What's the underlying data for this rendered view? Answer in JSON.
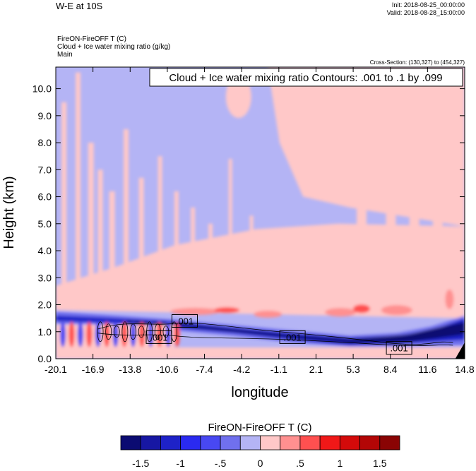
{
  "header": {
    "title": "W-E at 10S",
    "init": "Init: 2018-08-25_00:00:00",
    "valid": "Valid: 2018-08-28_15:00:00"
  },
  "meta": {
    "field": "FireON-FireOFF T   (C)",
    "contour": "Cloud + Ice water mixing ratio   (g/kg)",
    "domain": "Main"
  },
  "cross_section": "Cross-Section: (130,327) to (454,327)",
  "colors": [
    "#0b0b72",
    "#1717a3",
    "#1e22c8",
    "#2a2af0",
    "#4848f2",
    "#7070ee",
    "#b4b4f5",
    "#ffc8c8",
    "#ff9090",
    "#ff5050",
    "#f01818",
    "#d40a0a",
    "#b30606",
    "#8a0404"
  ],
  "chart_data": {
    "type": "heatmap",
    "title": "Cloud + Ice water mixing ratio Contours: .001 to .1 by .099",
    "xlabel": "longitude",
    "ylabel": "Height (km)",
    "xlim": [
      -20.1,
      14.8
    ],
    "ylim": [
      0,
      10.8
    ],
    "xticks": [
      "-20.1",
      "-16.9",
      "-13.8",
      "-10.6",
      "-7.4",
      "-4.2",
      "-1.1",
      "2.1",
      "5.3",
      "8.4",
      "11.6",
      "14.8"
    ],
    "yticks": [
      "0.0",
      "1.0",
      "2.0",
      "3.0",
      "4.0",
      "5.0",
      "6.0",
      "7.0",
      "8.0",
      "9.0",
      "10.0"
    ],
    "contour_labels": [
      {
        "text": ".001",
        "lon": -9.1,
        "h": 1.4
      },
      {
        "text": ".001",
        "lon": -11.3,
        "h": 0.8
      },
      {
        "text": ".001",
        "lon": 0.1,
        "h": 0.8
      },
      {
        "text": ".001",
        "lon": 9.2,
        "h": 0.4
      }
    ],
    "colorbar": {
      "label": "FireON-FireOFF T  (C)",
      "tick_labels": [
        "-1.5",
        "-1",
        "-.5",
        "0",
        ".5",
        "1",
        "1.5"
      ],
      "levels": [
        -1.5,
        -1.25,
        -1.0,
        -0.75,
        -0.5,
        -0.25,
        0,
        0.25,
        0.5,
        0.75,
        1.0,
        1.25,
        1.5
      ]
    }
  }
}
